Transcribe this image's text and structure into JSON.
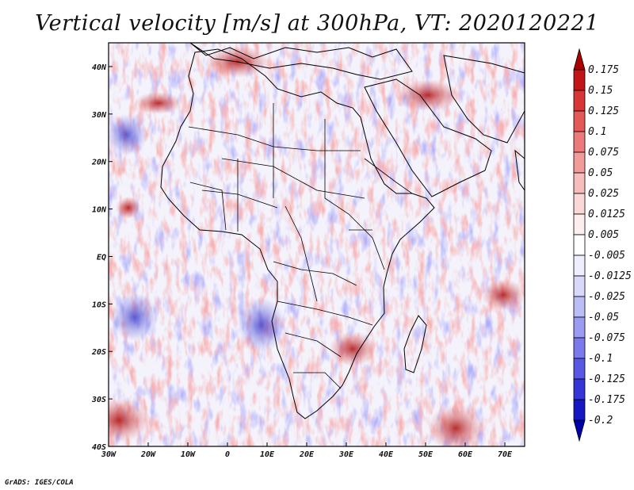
{
  "title": "Vertical velocity [m/s] at 300hPa, VT: 2020120221",
  "credit": "GrADS: IGES/COLA",
  "axes": {
    "lon_ticks": [
      "30W",
      "20W",
      "10W",
      "0",
      "10E",
      "20E",
      "30E",
      "40E",
      "50E",
      "60E",
      "70E"
    ],
    "lat_ticks": [
      "40N",
      "30N",
      "20N",
      "10N",
      "EQ",
      "10S",
      "20S",
      "30S",
      "40S"
    ]
  },
  "chart_data": {
    "type": "heatmap",
    "variable": "Vertical velocity",
    "units": "m/s",
    "level": "300hPa",
    "valid_time": "2020120221",
    "lon_range": [
      -30,
      75
    ],
    "lat_range": [
      -40,
      45
    ],
    "colorbar": {
      "labels": [
        "0.175",
        "0.15",
        "0.125",
        "0.1",
        "0.075",
        "0.05",
        "0.025",
        "0.0125",
        "0.005",
        "-0.005",
        "-0.0125",
        "-0.025",
        "-0.05",
        "-0.075",
        "-0.1",
        "-0.125",
        "-0.175",
        "-0.2"
      ],
      "colors": [
        "#a80000",
        "#c21616",
        "#d63636",
        "#e45858",
        "#ec7a7a",
        "#f29b9b",
        "#f7bcbc",
        "#fbd8d8",
        "#fdeeee",
        "#ffffff",
        "#eeeeff",
        "#d8d8fb",
        "#bcbcf7",
        "#9b9bf2",
        "#7a7aec",
        "#5858e4",
        "#3636d6",
        "#1616c2",
        "#0000a8"
      ]
    }
  }
}
